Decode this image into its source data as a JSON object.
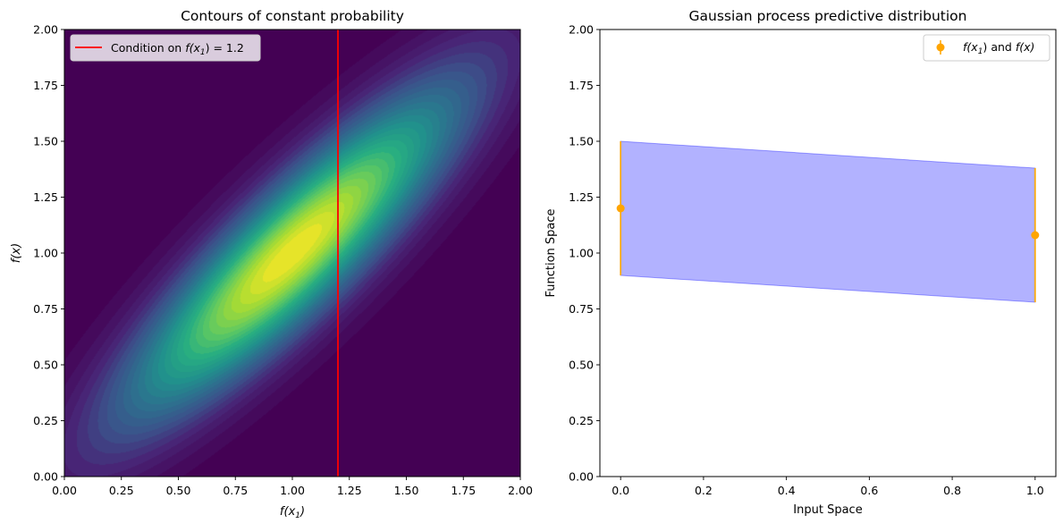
{
  "chart_data": [
    {
      "type": "heatmap",
      "title": "Contours of constant probability",
      "xlabel_base": "f(x",
      "xlabel_sub": "1",
      "xlabel_close": ")",
      "ylabel": "f(x)",
      "xlim": [
        0,
        2
      ],
      "ylim": [
        0,
        2
      ],
      "xticks": [
        "0.00",
        "0.25",
        "0.50",
        "0.75",
        "1.00",
        "1.25",
        "1.50",
        "1.75",
        "2.00"
      ],
      "yticks": [
        "0.00",
        "0.25",
        "0.50",
        "0.75",
        "1.00",
        "1.25",
        "1.50",
        "1.75",
        "2.00"
      ],
      "density": {
        "mean": [
          1.0,
          1.0
        ],
        "var_x": 0.25,
        "var_y": 0.25,
        "correlation": 0.88
      },
      "colormap": "viridis",
      "vline": {
        "x": 1.2,
        "color": "#ff0000"
      },
      "legend": {
        "position": "upper-left",
        "text": "Condition on",
        "math_base": "f(x",
        "math_sub": "1",
        "math_rest": ") = 1.2"
      }
    },
    {
      "type": "errorbar",
      "title": "Gaussian process predictive distribution",
      "xlabel": "Input Space",
      "ylabel": "Function Space",
      "xlim": [
        -0.05,
        1.05
      ],
      "ylim": [
        0,
        2
      ],
      "xticks": [
        "0.0",
        "0.2",
        "0.4",
        "0.6",
        "0.8",
        "1.0"
      ],
      "yticks": [
        "0.00",
        "0.25",
        "0.50",
        "0.75",
        "1.00",
        "1.25",
        "1.50",
        "1.75",
        "2.00"
      ],
      "points": [
        {
          "x": 0.0,
          "y": 1.2,
          "err": 0.3
        },
        {
          "x": 1.0,
          "y": 1.08,
          "err": 0.3
        }
      ],
      "band": {
        "x": [
          0.0,
          1.0
        ],
        "lower": [
          0.9,
          0.78
        ],
        "upper": [
          1.5,
          1.38
        ],
        "color": "#0000ff",
        "alpha": 0.3
      },
      "point_color": "#ffa500",
      "legend": {
        "position": "upper-right",
        "part1_base": "f(x",
        "part1_sub": "1",
        "part1_rest": ")",
        "and_text": "and",
        "part2": "f(x)"
      }
    }
  ]
}
